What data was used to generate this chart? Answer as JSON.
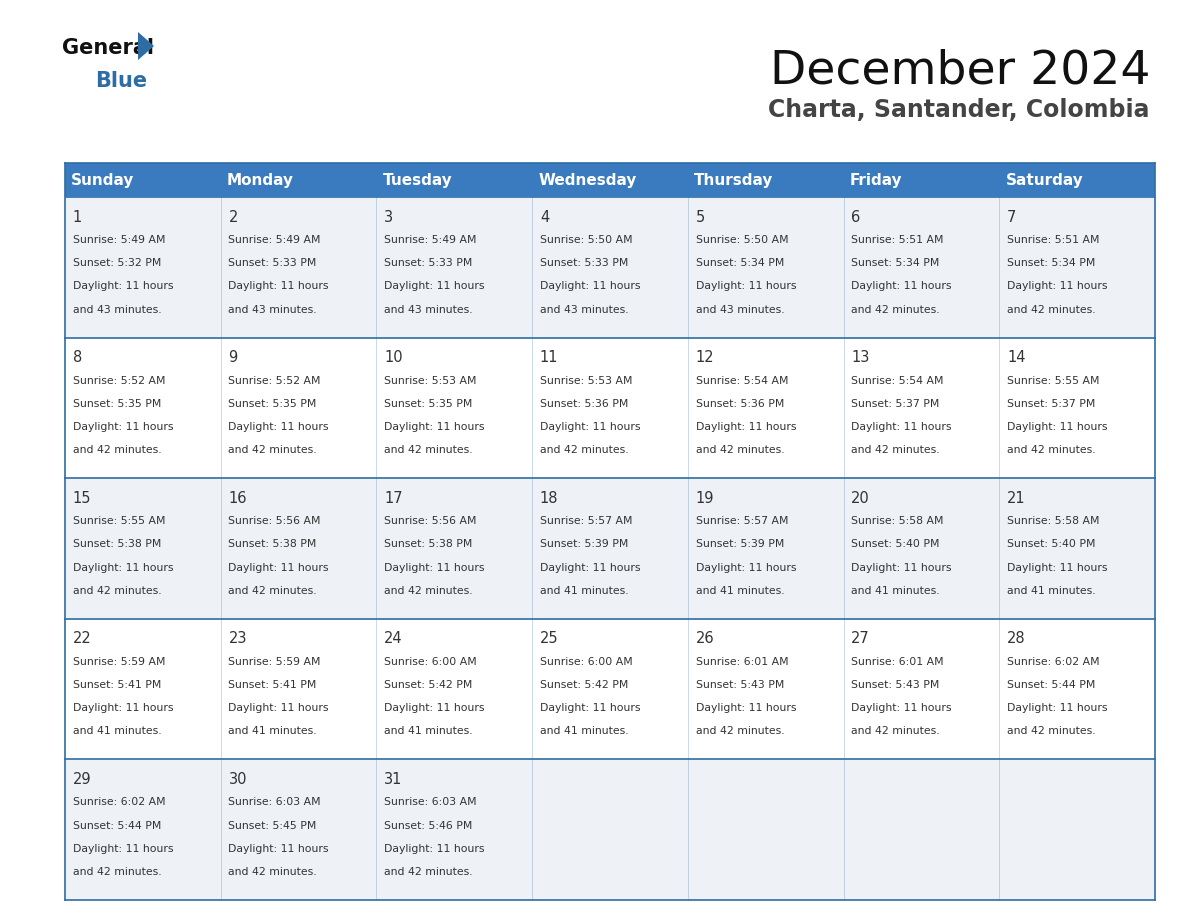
{
  "title": "December 2024",
  "subtitle": "Charta, Santander, Colombia",
  "header_bg_color": "#3a7bbf",
  "header_text_color": "#ffffff",
  "cell_bg_even": "#eef2f7",
  "cell_bg_odd": "#ffffff",
  "day_names": [
    "Sunday",
    "Monday",
    "Tuesday",
    "Wednesday",
    "Thursday",
    "Friday",
    "Saturday"
  ],
  "days_data": [
    {
      "day": 1,
      "col": 0,
      "row": 0,
      "sunrise": "5:49 AM",
      "sunset": "5:32 PM",
      "daylight": "43 minutes."
    },
    {
      "day": 2,
      "col": 1,
      "row": 0,
      "sunrise": "5:49 AM",
      "sunset": "5:33 PM",
      "daylight": "43 minutes."
    },
    {
      "day": 3,
      "col": 2,
      "row": 0,
      "sunrise": "5:49 AM",
      "sunset": "5:33 PM",
      "daylight": "43 minutes."
    },
    {
      "day": 4,
      "col": 3,
      "row": 0,
      "sunrise": "5:50 AM",
      "sunset": "5:33 PM",
      "daylight": "43 minutes."
    },
    {
      "day": 5,
      "col": 4,
      "row": 0,
      "sunrise": "5:50 AM",
      "sunset": "5:34 PM",
      "daylight": "43 minutes."
    },
    {
      "day": 6,
      "col": 5,
      "row": 0,
      "sunrise": "5:51 AM",
      "sunset": "5:34 PM",
      "daylight": "42 minutes."
    },
    {
      "day": 7,
      "col": 6,
      "row": 0,
      "sunrise": "5:51 AM",
      "sunset": "5:34 PM",
      "daylight": "42 minutes."
    },
    {
      "day": 8,
      "col": 0,
      "row": 1,
      "sunrise": "5:52 AM",
      "sunset": "5:35 PM",
      "daylight": "42 minutes."
    },
    {
      "day": 9,
      "col": 1,
      "row": 1,
      "sunrise": "5:52 AM",
      "sunset": "5:35 PM",
      "daylight": "42 minutes."
    },
    {
      "day": 10,
      "col": 2,
      "row": 1,
      "sunrise": "5:53 AM",
      "sunset": "5:35 PM",
      "daylight": "42 minutes."
    },
    {
      "day": 11,
      "col": 3,
      "row": 1,
      "sunrise": "5:53 AM",
      "sunset": "5:36 PM",
      "daylight": "42 minutes."
    },
    {
      "day": 12,
      "col": 4,
      "row": 1,
      "sunrise": "5:54 AM",
      "sunset": "5:36 PM",
      "daylight": "42 minutes."
    },
    {
      "day": 13,
      "col": 5,
      "row": 1,
      "sunrise": "5:54 AM",
      "sunset": "5:37 PM",
      "daylight": "42 minutes."
    },
    {
      "day": 14,
      "col": 6,
      "row": 1,
      "sunrise": "5:55 AM",
      "sunset": "5:37 PM",
      "daylight": "42 minutes."
    },
    {
      "day": 15,
      "col": 0,
      "row": 2,
      "sunrise": "5:55 AM",
      "sunset": "5:38 PM",
      "daylight": "42 minutes."
    },
    {
      "day": 16,
      "col": 1,
      "row": 2,
      "sunrise": "5:56 AM",
      "sunset": "5:38 PM",
      "daylight": "42 minutes."
    },
    {
      "day": 17,
      "col": 2,
      "row": 2,
      "sunrise": "5:56 AM",
      "sunset": "5:38 PM",
      "daylight": "42 minutes."
    },
    {
      "day": 18,
      "col": 3,
      "row": 2,
      "sunrise": "5:57 AM",
      "sunset": "5:39 PM",
      "daylight": "41 minutes."
    },
    {
      "day": 19,
      "col": 4,
      "row": 2,
      "sunrise": "5:57 AM",
      "sunset": "5:39 PM",
      "daylight": "41 minutes."
    },
    {
      "day": 20,
      "col": 5,
      "row": 2,
      "sunrise": "5:58 AM",
      "sunset": "5:40 PM",
      "daylight": "41 minutes."
    },
    {
      "day": 21,
      "col": 6,
      "row": 2,
      "sunrise": "5:58 AM",
      "sunset": "5:40 PM",
      "daylight": "41 minutes."
    },
    {
      "day": 22,
      "col": 0,
      "row": 3,
      "sunrise": "5:59 AM",
      "sunset": "5:41 PM",
      "daylight": "41 minutes."
    },
    {
      "day": 23,
      "col": 1,
      "row": 3,
      "sunrise": "5:59 AM",
      "sunset": "5:41 PM",
      "daylight": "41 minutes."
    },
    {
      "day": 24,
      "col": 2,
      "row": 3,
      "sunrise": "6:00 AM",
      "sunset": "5:42 PM",
      "daylight": "41 minutes."
    },
    {
      "day": 25,
      "col": 3,
      "row": 3,
      "sunrise": "6:00 AM",
      "sunset": "5:42 PM",
      "daylight": "41 minutes."
    },
    {
      "day": 26,
      "col": 4,
      "row": 3,
      "sunrise": "6:01 AM",
      "sunset": "5:43 PM",
      "daylight": "42 minutes."
    },
    {
      "day": 27,
      "col": 5,
      "row": 3,
      "sunrise": "6:01 AM",
      "sunset": "5:43 PM",
      "daylight": "42 minutes."
    },
    {
      "day": 28,
      "col": 6,
      "row": 3,
      "sunrise": "6:02 AM",
      "sunset": "5:44 PM",
      "daylight": "42 minutes."
    },
    {
      "day": 29,
      "col": 0,
      "row": 4,
      "sunrise": "6:02 AM",
      "sunset": "5:44 PM",
      "daylight": "42 minutes."
    },
    {
      "day": 30,
      "col": 1,
      "row": 4,
      "sunrise": "6:03 AM",
      "sunset": "5:45 PM",
      "daylight": "42 minutes."
    },
    {
      "day": 31,
      "col": 2,
      "row": 4,
      "sunrise": "6:03 AM",
      "sunset": "5:46 PM",
      "daylight": "42 minutes."
    }
  ],
  "num_rows": 5,
  "border_color": "#2e6da4",
  "text_color": "#333333",
  "title_color": "#111111",
  "subtitle_color": "#444444",
  "logo_general_color": "#111111",
  "logo_blue_color": "#2e6da4",
  "logo_triangle_color": "#2e6da4"
}
